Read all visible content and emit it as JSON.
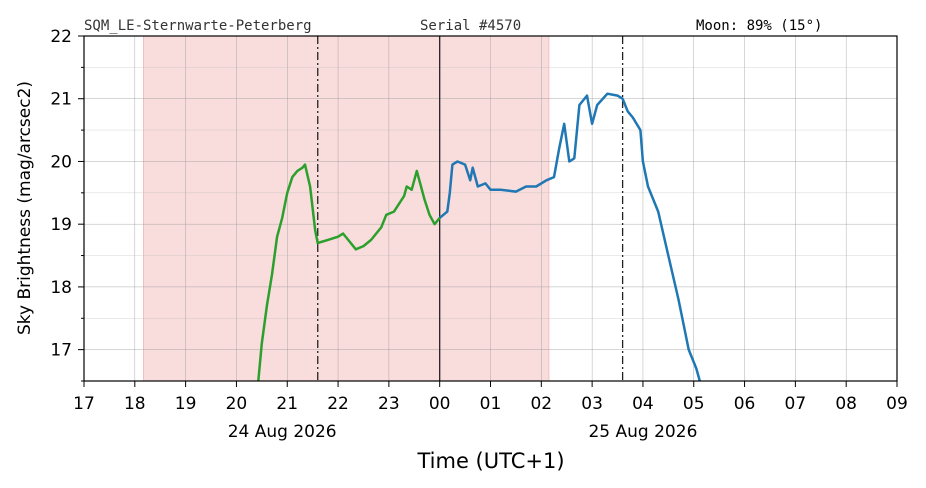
{
  "chart_data": {
    "type": "line",
    "header": {
      "station": "SQM_LE-Sternwarte-Peterberg",
      "serial": "Serial #4570",
      "moon": "Moon: 89% (15°)"
    },
    "y_label": "Sky Brightness (mag/arcsec2)",
    "x_label": "Time (UTC+1)",
    "date_labels": [
      {
        "x": 20.9,
        "label": "24 Aug 2026"
      },
      {
        "x": 28.0,
        "label": "25 Aug 2026"
      }
    ],
    "xlim": [
      17,
      33
    ],
    "ylim": [
      16.5,
      22
    ],
    "xticks": [
      17,
      18,
      19,
      20,
      21,
      22,
      23,
      {
        "value": 24,
        "label": "00"
      },
      {
        "value": 25,
        "label": "01"
      },
      {
        "value": 26,
        "label": "02"
      },
      {
        "value": 27,
        "label": "03"
      },
      {
        "value": 28,
        "label": "04"
      },
      {
        "value": 29,
        "label": "05"
      },
      {
        "value": 30,
        "label": "06"
      },
      {
        "value": 31,
        "label": "07"
      },
      {
        "value": 32,
        "label": "08"
      },
      {
        "value": 33,
        "label": "09"
      }
    ],
    "yticks": [
      17,
      18,
      19,
      20,
      21,
      22
    ],
    "yminor": [
      16.5,
      17.5,
      18.5,
      19.5,
      20.5,
      21.5
    ],
    "grid": true,
    "shaded_span": {
      "x": [
        18.17,
        26.15
      ],
      "color": "#f9dcdc"
    },
    "vlines": [
      {
        "x": 21.6,
        "style": "dashdot"
      },
      {
        "x": 24,
        "style": "solid"
      },
      {
        "x": 27.6,
        "style": "dashdot"
      }
    ],
    "series": [
      {
        "color": "#2ca02c",
        "x": [
          20.43,
          20.5,
          20.6,
          20.7,
          20.8,
          20.9,
          20.95,
          21.0,
          21.1,
          21.2,
          21.3,
          21.35,
          21.45,
          21.55,
          21.6,
          21.8,
          22.0,
          22.1,
          22.2,
          22.35,
          22.5,
          22.65,
          22.85,
          22.95,
          23.1,
          23.3,
          23.35,
          23.45,
          23.55,
          23.7,
          23.8,
          23.9,
          24.0
        ],
        "values": [
          16.5,
          17.1,
          17.7,
          18.2,
          18.8,
          19.1,
          19.3,
          19.5,
          19.75,
          19.85,
          19.9,
          19.95,
          19.6,
          18.9,
          18.7,
          18.75,
          18.8,
          18.85,
          18.75,
          18.6,
          18.65,
          18.75,
          18.95,
          19.15,
          19.2,
          19.45,
          19.6,
          19.55,
          19.85,
          19.4,
          19.15,
          19.0,
          19.1
        ]
      },
      {
        "color": "#1f77b4",
        "x": [
          24.0,
          24.15,
          24.2,
          24.25,
          24.35,
          24.5,
          24.6,
          24.65,
          24.75,
          24.9,
          25.0,
          25.2,
          25.5,
          25.7,
          25.9,
          26.1,
          26.25,
          26.35,
          26.45,
          26.55,
          26.65,
          26.75,
          26.9,
          27.0,
          27.1,
          27.3,
          27.5,
          27.6,
          27.7,
          27.8,
          27.95,
          28.0,
          28.1,
          28.3,
          28.5,
          28.7,
          28.9,
          29.05,
          29.12
        ],
        "values": [
          19.1,
          19.2,
          19.5,
          19.95,
          20.0,
          19.95,
          19.7,
          19.9,
          19.6,
          19.65,
          19.55,
          19.55,
          19.52,
          19.6,
          19.6,
          19.7,
          19.75,
          20.2,
          20.6,
          20.0,
          20.05,
          20.9,
          21.05,
          20.6,
          20.9,
          21.08,
          21.05,
          21.0,
          20.8,
          20.7,
          20.5,
          20.0,
          19.6,
          19.2,
          18.5,
          17.8,
          17.0,
          16.7,
          16.5
        ]
      }
    ]
  }
}
